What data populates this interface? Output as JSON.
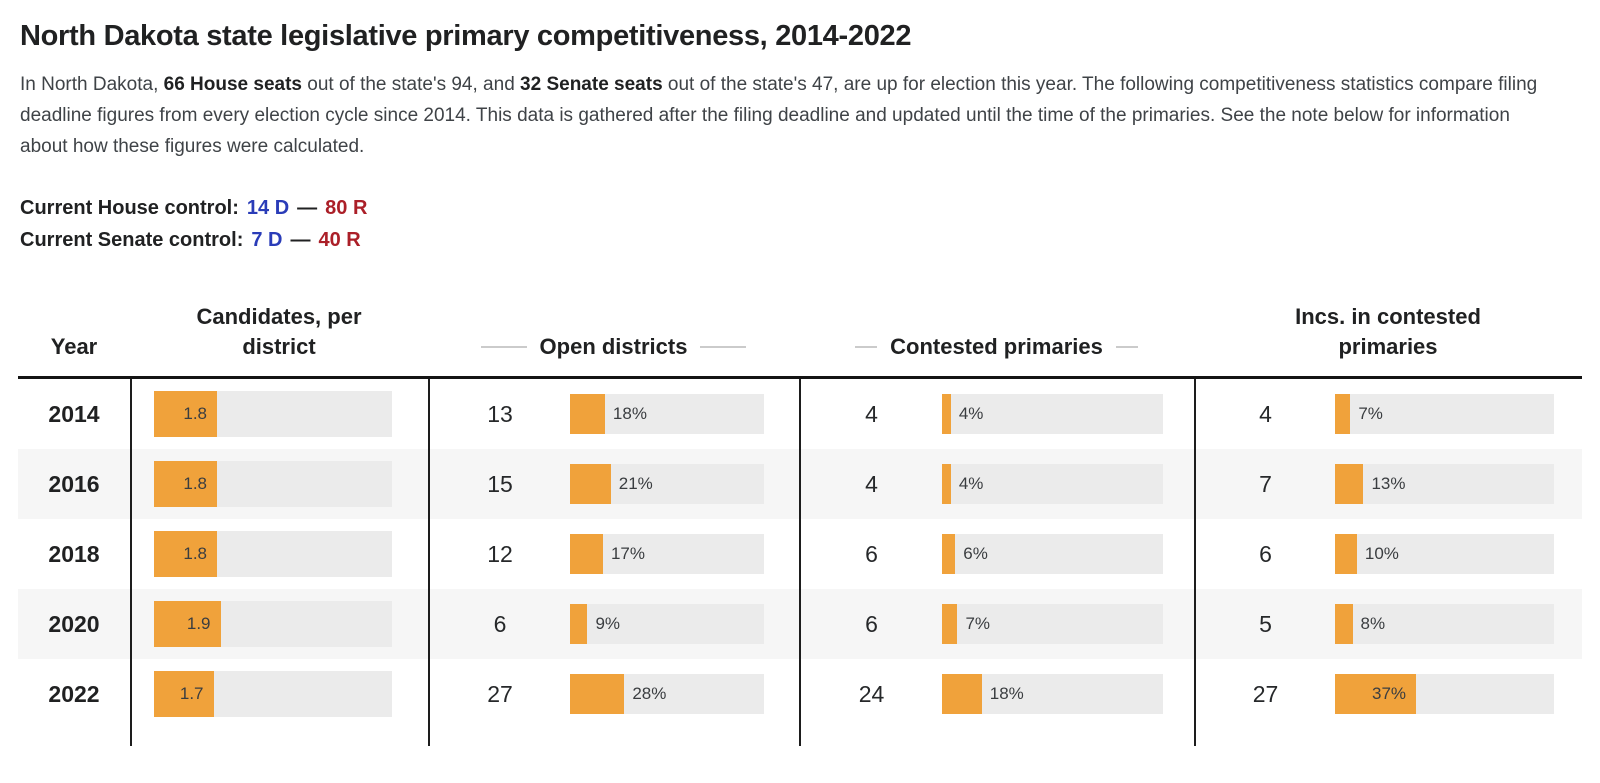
{
  "page": {
    "title": "North Dakota state legislative primary competitiveness, 2014-2022",
    "intro": {
      "pre": "In North Dakota, ",
      "bold1": "66 House seats",
      "mid1": " out of the state's 94, and ",
      "bold2": "32 Senate seats",
      "rest": " out of the state's 47, are up for election this year. The following competitiveness statistics compare filing deadline figures from every election cycle since 2014. This data is gathered after the filing deadline and updated until the time of the primaries. See the note below for information about how these figures were calculated."
    },
    "control": [
      {
        "label": "Current House control:",
        "dem": "14 D",
        "sep": "—",
        "rep": "80 R"
      },
      {
        "label": "Current Senate control:",
        "dem": "7 D",
        "sep": "—",
        "rep": "40 R"
      }
    ]
  },
  "colors": {
    "accent_orange": "#F0A23B",
    "dem_blue": "#2A3CB8",
    "rep_red": "#AB1F28",
    "bar_track_gray": "#EBEBEB",
    "row_stripe_gray": "#F6F6F6"
  },
  "chart_data": {
    "type": "table",
    "title": "North Dakota state legislative primary competitiveness, 2014-2022",
    "columns": [
      "Year",
      "Candidates, per district",
      "Open districts",
      "Contested primaries",
      "Incs. in contested primaries"
    ],
    "bar_scale_note": "candidates-per-district bars drawn on a 0 to 6.8 scale; percent bars drawn 0 to 100",
    "candidates_bar_max": 6.8,
    "rows": [
      {
        "year": "2014",
        "candidates_per_district": 1.8,
        "open_districts": {
          "count": 13,
          "pct": 18
        },
        "contested_primaries": {
          "count": 4,
          "pct": 4
        },
        "incs_in_contested": {
          "count": 4,
          "pct": 7
        }
      },
      {
        "year": "2016",
        "candidates_per_district": 1.8,
        "open_districts": {
          "count": 15,
          "pct": 21
        },
        "contested_primaries": {
          "count": 4,
          "pct": 4
        },
        "incs_in_contested": {
          "count": 7,
          "pct": 13
        }
      },
      {
        "year": "2018",
        "candidates_per_district": 1.8,
        "open_districts": {
          "count": 12,
          "pct": 17
        },
        "contested_primaries": {
          "count": 6,
          "pct": 6
        },
        "incs_in_contested": {
          "count": 6,
          "pct": 10
        }
      },
      {
        "year": "2020",
        "candidates_per_district": 1.9,
        "open_districts": {
          "count": 6,
          "pct": 9
        },
        "contested_primaries": {
          "count": 6,
          "pct": 7
        },
        "incs_in_contested": {
          "count": 5,
          "pct": 8
        }
      },
      {
        "year": "2022",
        "candidates_per_district": 1.7,
        "open_districts": {
          "count": 27,
          "pct": 28
        },
        "contested_primaries": {
          "count": 24,
          "pct": 18
        },
        "incs_in_contested": {
          "count": 27,
          "pct": 37
        }
      }
    ]
  }
}
